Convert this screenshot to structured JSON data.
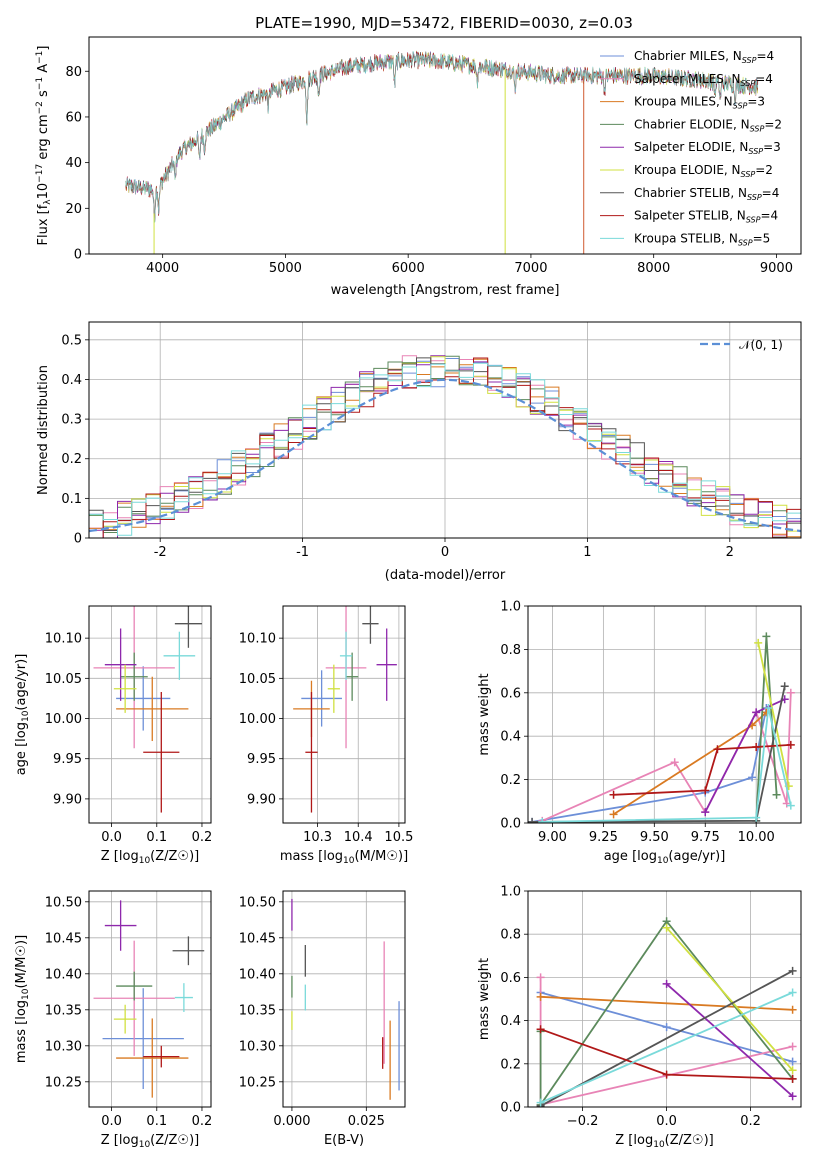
{
  "figure_title": "PLATE=1990, MJD=53472, FIBERID=0030, z=0.03",
  "chart_data": [
    {
      "id": "spectrum",
      "type": "line",
      "xlabel": "wavelength [Angstrom, rest frame]",
      "ylabel": "Flux [f_λ10^-17 erg cm^-2 s^-1 A^-1]",
      "xlim": [
        3400,
        9200
      ],
      "ylim": [
        0,
        95
      ],
      "xticks": [
        4000,
        5000,
        6000,
        7000,
        8000,
        9000
      ],
      "yticks": [
        0,
        20,
        40,
        60,
        80
      ],
      "grid": false,
      "legend_position": "right",
      "legend": [
        {
          "label": "Chabrier MILES, N",
          "sub": "SSP",
          "suffix": "=4",
          "color": "#6d8fd8"
        },
        {
          "label": "Salpeter MILES, N",
          "sub": "SSP",
          "suffix": "=4",
          "color": "#e884b6"
        },
        {
          "label": "Kroupa MILES, N",
          "sub": "SSP",
          "suffix": "=3",
          "color": "#d97a22"
        },
        {
          "label": "Chabrier ELODIE, N",
          "sub": "SSP",
          "suffix": "=2",
          "color": "#5c8a5c"
        },
        {
          "label": "Salpeter ELODIE, N",
          "sub": "SSP",
          "suffix": "=3",
          "color": "#8e28ac"
        },
        {
          "label": "Kroupa ELODIE, N",
          "sub": "SSP",
          "suffix": "=2",
          "color": "#d0e040"
        },
        {
          "label": "Chabrier STELIB, N",
          "sub": "SSP",
          "suffix": "=4",
          "color": "#555555"
        },
        {
          "label": "Salpeter STELIB, N",
          "sub": "SSP",
          "suffix": "=4",
          "color": "#b01818"
        },
        {
          "label": "Kroupa STELIB, N",
          "sub": "SSP",
          "suffix": "=5",
          "color": "#7adada"
        }
      ],
      "x_range": [
        3700,
        8850
      ],
      "continuum_anchors": [
        [
          3700,
          30
        ],
        [
          3950,
          28
        ],
        [
          4150,
          45
        ],
        [
          4400,
          55
        ],
        [
          4700,
          68
        ],
        [
          5000,
          73
        ],
        [
          5200,
          77
        ],
        [
          5500,
          82
        ],
        [
          5800,
          84
        ],
        [
          6100,
          85
        ],
        [
          6300,
          84
        ],
        [
          6600,
          82
        ],
        [
          6900,
          80
        ],
        [
          7200,
          78
        ],
        [
          7600,
          78
        ],
        [
          8000,
          78
        ],
        [
          8400,
          76
        ],
        [
          8850,
          73
        ]
      ],
      "absorption_lines": [
        [
          3933,
          12
        ],
        [
          3968,
          10
        ],
        [
          4102,
          8
        ],
        [
          4300,
          10
        ],
        [
          4340,
          6
        ],
        [
          4861,
          6
        ],
        [
          5175,
          18
        ],
        [
          5270,
          8
        ],
        [
          5890,
          10
        ],
        [
          6563,
          6
        ],
        [
          6870,
          8
        ],
        [
          7600,
          6
        ],
        [
          8498,
          5
        ],
        [
          8542,
          7
        ],
        [
          8662,
          6
        ]
      ],
      "glitches": [
        {
          "x": 3930,
          "to": 0,
          "color": "#d0e040"
        },
        {
          "x": 6790,
          "to": 0,
          "color": "#d0e040"
        },
        {
          "x": 7430,
          "to": 0,
          "color": "#d05a30"
        }
      ]
    },
    {
      "id": "residuals",
      "type": "step-histogram",
      "xlabel": "(data-model)/error",
      "ylabel": "Normed distribution",
      "xlim": [
        -2.5,
        2.5
      ],
      "ylim": [
        0,
        0.545
      ],
      "xticks": [
        -2,
        -1,
        0,
        1,
        2
      ],
      "yticks": [
        0.0,
        0.1,
        0.2,
        0.3,
        0.4,
        0.5
      ],
      "grid": true,
      "legend_position": "top-right",
      "normal_label": "𝒩(0, 1)",
      "normal_color": "#5b8fd6",
      "bin_edges_start": -2.5,
      "bin_width": 0.1,
      "series_colors": [
        "#6d8fd8",
        "#e884b6",
        "#d97a22",
        "#5c8a5c",
        "#8e28ac",
        "#d0e040",
        "#555555",
        "#b01818",
        "#7adada"
      ]
    },
    {
      "id": "age-vs-z",
      "type": "scatter",
      "xlabel": "Z [log10(Z/Z☉)]",
      "ylabel": "age  [log10(age/yr)]",
      "xlim": [
        -0.05,
        0.22
      ],
      "ylim": [
        9.87,
        10.14
      ],
      "xticks": [
        0.0,
        0.1,
        0.2
      ],
      "xtick_labels": [
        "0.0",
        "0.1",
        "0.2"
      ],
      "yticks": [
        9.9,
        9.95,
        10.0,
        10.05,
        10.1
      ],
      "ytick_labels": [
        "9.90",
        "9.95",
        "10.00",
        "10.05",
        "10.10"
      ],
      "grid": true,
      "points": [
        {
          "x": 0.07,
          "y": 10.025,
          "xerr": 0.06,
          "yerr": 0.04,
          "color": "#6d8fd8"
        },
        {
          "x": 0.05,
          "y": 10.063,
          "xerr": 0.09,
          "yerr": 0.1,
          "color": "#e884b6"
        },
        {
          "x": 0.09,
          "y": 10.012,
          "xerr": 0.08,
          "yerr": 0.04,
          "color": "#d97a22"
        },
        {
          "x": 0.05,
          "y": 10.052,
          "xerr": 0.03,
          "yerr": 0.03,
          "color": "#5c8a5c"
        },
        {
          "x": 0.02,
          "y": 10.067,
          "xerr": 0.035,
          "yerr": 0.045,
          "color": "#8e28ac"
        },
        {
          "x": 0.03,
          "y": 10.037,
          "xerr": 0.025,
          "yerr": 0.03,
          "color": "#d0e040"
        },
        {
          "x": 0.17,
          "y": 10.118,
          "xerr": 0.03,
          "yerr": 0.03,
          "color": "#555555"
        },
        {
          "x": 0.11,
          "y": 9.958,
          "xerr": 0.04,
          "yerr": 0.075,
          "color": "#b01818"
        },
        {
          "x": 0.15,
          "y": 10.078,
          "xerr": 0.035,
          "yerr": 0.03,
          "color": "#7adada"
        }
      ]
    },
    {
      "id": "age-vs-mass",
      "type": "scatter",
      "xlabel": "mass [log10(M/M☉)]",
      "ylabel": "",
      "xlim": [
        10.215,
        10.515
      ],
      "ylim": [
        9.87,
        10.14
      ],
      "xticks": [
        10.3,
        10.4,
        10.5
      ],
      "xtick_labels": [
        "10.3",
        "10.4",
        "10.5"
      ],
      "yticks": [
        9.9,
        9.95,
        10.0,
        10.05,
        10.1
      ],
      "ytick_labels": [
        "9.90",
        "9.95",
        "10.00",
        "10.05",
        "10.10"
      ],
      "grid": true,
      "points": [
        {
          "x": 10.31,
          "y": 10.025,
          "xerr": 0.05,
          "yerr": 0.035,
          "color": "#6d8fd8"
        },
        {
          "x": 10.37,
          "y": 10.063,
          "xerr": 0.05,
          "yerr": 0.1,
          "color": "#e884b6"
        },
        {
          "x": 10.285,
          "y": 10.012,
          "xerr": 0.045,
          "yerr": 0.035,
          "color": "#d97a22"
        },
        {
          "x": 10.385,
          "y": 10.052,
          "xerr": 0.015,
          "yerr": 0.03,
          "color": "#5c8a5c"
        },
        {
          "x": 10.47,
          "y": 10.067,
          "xerr": 0.025,
          "yerr": 0.045,
          "color": "#8e28ac"
        },
        {
          "x": 10.34,
          "y": 10.037,
          "xerr": 0.015,
          "yerr": 0.03,
          "color": "#d0e040"
        },
        {
          "x": 10.43,
          "y": 10.118,
          "xerr": 0.02,
          "yerr": 0.025,
          "color": "#555555"
        },
        {
          "x": 10.285,
          "y": 9.958,
          "xerr": 0.015,
          "yerr": 0.075,
          "color": "#b01818"
        },
        {
          "x": 10.37,
          "y": 10.078,
          "xerr": 0.015,
          "yerr": 0.03,
          "color": "#7adada"
        }
      ]
    },
    {
      "id": "weight-vs-age",
      "type": "line",
      "xlabel": "age  [log10(age/yr)]",
      "ylabel": "mass weight",
      "xlim": [
        8.88,
        10.22
      ],
      "ylim": [
        0,
        1.0
      ],
      "xticks": [
        9.0,
        9.25,
        9.5,
        9.75,
        10.0
      ],
      "xtick_labels": [
        "9.00",
        "9.25",
        "9.50",
        "9.75",
        "10.00"
      ],
      "yticks": [
        0.0,
        0.2,
        0.4,
        0.6,
        0.8,
        1.0
      ],
      "ytick_labels": [
        "0.0",
        "0.2",
        "0.4",
        "0.6",
        "0.8",
        "1.0"
      ],
      "grid": true,
      "series": [
        {
          "color": "#6d8fd8",
          "points": [
            [
              8.9,
              0.005
            ],
            [
              9.75,
              0.14
            ],
            [
              9.98,
              0.21
            ],
            [
              10.05,
              0.53
            ]
          ]
        },
        {
          "color": "#e884b6",
          "points": [
            [
              8.95,
              0.01
            ],
            [
              9.6,
              0.28
            ],
            [
              9.75,
              0.05
            ],
            [
              10.0,
              0.51
            ],
            [
              10.15,
              0.09
            ],
            [
              10.17,
              0.6
            ]
          ]
        },
        {
          "color": "#d97a22",
          "points": [
            [
              9.3,
              0.04
            ],
            [
              9.98,
              0.45
            ],
            [
              10.05,
              0.51
            ]
          ]
        },
        {
          "color": "#5c8a5c",
          "points": [
            [
              10.0,
              0.01
            ],
            [
              10.05,
              0.86
            ],
            [
              10.1,
              0.13
            ]
          ]
        },
        {
          "color": "#8e28ac",
          "points": [
            [
              9.75,
              0.05
            ],
            [
              10.0,
              0.51
            ],
            [
              10.14,
              0.57
            ]
          ]
        },
        {
          "color": "#d0e040",
          "points": [
            [
              10.01,
              0.83
            ],
            [
              10.16,
              0.17
            ]
          ]
        },
        {
          "color": "#555555",
          "points": [
            [
              8.9,
              0.005
            ],
            [
              10.0,
              0.01
            ],
            [
              10.14,
              0.63
            ]
          ]
        },
        {
          "color": "#b01818",
          "points": [
            [
              9.3,
              0.13
            ],
            [
              9.75,
              0.15
            ],
            [
              9.81,
              0.34
            ],
            [
              10.0,
              0.35
            ],
            [
              10.17,
              0.36
            ]
          ]
        },
        {
          "color": "#7adada",
          "points": [
            [
              8.95,
              0.005
            ],
            [
              10.0,
              0.025
            ],
            [
              10.06,
              0.53
            ],
            [
              10.17,
              0.08
            ]
          ]
        }
      ]
    },
    {
      "id": "mass-vs-z",
      "type": "scatter",
      "xlabel": "Z [log10(Z/Z☉)]",
      "ylabel": "mass [log10(M/M☉)]",
      "xlim": [
        -0.05,
        0.22
      ],
      "ylim": [
        10.215,
        10.515
      ],
      "xticks": [
        0.0,
        0.1,
        0.2
      ],
      "xtick_labels": [
        "0.0",
        "0.1",
        "0.2"
      ],
      "yticks": [
        10.25,
        10.3,
        10.35,
        10.4,
        10.45,
        10.5
      ],
      "ytick_labels": [
        "10.25",
        "10.30",
        "10.35",
        "10.40",
        "10.45",
        "10.50"
      ],
      "grid": true,
      "points": [
        {
          "x": 0.07,
          "y": 10.31,
          "xerr": 0.09,
          "yerr": 0.07,
          "color": "#6d8fd8"
        },
        {
          "x": 0.05,
          "y": 10.366,
          "xerr": 0.09,
          "yerr": 0.08,
          "color": "#e884b6"
        },
        {
          "x": 0.09,
          "y": 10.283,
          "xerr": 0.08,
          "yerr": 0.055,
          "color": "#d97a22"
        },
        {
          "x": 0.05,
          "y": 10.383,
          "xerr": 0.04,
          "yerr": 0.02,
          "color": "#5c8a5c"
        },
        {
          "x": 0.02,
          "y": 10.467,
          "xerr": 0.035,
          "yerr": 0.035,
          "color": "#8e28ac"
        },
        {
          "x": 0.03,
          "y": 10.337,
          "xerr": 0.025,
          "yerr": 0.02,
          "color": "#d0e040"
        },
        {
          "x": 0.17,
          "y": 10.432,
          "xerr": 0.035,
          "yerr": 0.02,
          "color": "#555555"
        },
        {
          "x": 0.11,
          "y": 10.285,
          "xerr": 0.04,
          "yerr": 0.015,
          "color": "#b01818"
        },
        {
          "x": 0.16,
          "y": 10.367,
          "xerr": 0.02,
          "yerr": 0.02,
          "color": "#7adada"
        }
      ]
    },
    {
      "id": "mass-vs-ebv",
      "type": "scatter",
      "xlabel": "E(B-V)",
      "ylabel": "",
      "xlim": [
        -0.003,
        0.038
      ],
      "ylim": [
        10.215,
        10.515
      ],
      "xticks": [
        0.0,
        0.025
      ],
      "xtick_labels": [
        "0.000",
        "0.025"
      ],
      "yticks": [
        10.25,
        10.3,
        10.35,
        10.4,
        10.45,
        10.5
      ],
      "ytick_labels": [
        "10.25",
        "10.30",
        "10.35",
        "10.40",
        "10.45",
        "10.50"
      ],
      "grid": true,
      "points": [
        {
          "x": 0.036,
          "y": 10.3,
          "xerr": 0,
          "yerr": 0.062,
          "color": "#6d8fd8"
        },
        {
          "x": 0.031,
          "y": 10.36,
          "xerr": 0,
          "yerr": 0.085,
          "color": "#e884b6"
        },
        {
          "x": 0.033,
          "y": 10.28,
          "xerr": 0,
          "yerr": 0.055,
          "color": "#d97a22"
        },
        {
          "x": 0.0,
          "y": 10.382,
          "xerr": 0,
          "yerr": 0.015,
          "color": "#5c8a5c"
        },
        {
          "x": 0.0,
          "y": 10.482,
          "xerr": 0,
          "yerr": 0.022,
          "color": "#8e28ac"
        },
        {
          "x": 0.0,
          "y": 10.335,
          "xerr": 0,
          "yerr": 0.013,
          "color": "#d0e040"
        },
        {
          "x": 0.0045,
          "y": 10.418,
          "xerr": 0,
          "yerr": 0.022,
          "color": "#555555"
        },
        {
          "x": 0.0305,
          "y": 10.29,
          "xerr": 0,
          "yerr": 0.022,
          "color": "#b01818"
        },
        {
          "x": 0.0045,
          "y": 10.367,
          "xerr": 0,
          "yerr": 0.018,
          "color": "#7adada"
        }
      ]
    },
    {
      "id": "weight-vs-z",
      "type": "line",
      "xlabel": "Z [log10(Z/Z☉)]",
      "ylabel": "mass weight",
      "xlim": [
        -0.33,
        0.32
      ],
      "ylim": [
        0,
        1.0
      ],
      "xticks": [
        -0.2,
        0.0,
        0.2
      ],
      "xtick_labels": [
        "−0.2",
        "0.0",
        "0.2"
      ],
      "yticks": [
        0.0,
        0.2,
        0.4,
        0.6,
        0.8,
        1.0
      ],
      "ytick_labels": [
        "0.0",
        "0.2",
        "0.4",
        "0.6",
        "0.8",
        "1.0"
      ],
      "grid": true,
      "series": [
        {
          "color": "#6d8fd8",
          "points": [
            [
              -0.3,
              0.53
            ],
            [
              0.0,
              0.37
            ],
            [
              0.3,
              0.21
            ]
          ]
        },
        {
          "color": "#e884b6",
          "points": [
            [
              -0.3,
              0.6
            ],
            [
              -0.3,
              0.01
            ],
            [
              0.3,
              0.28
            ]
          ]
        },
        {
          "color": "#d97a22",
          "points": [
            [
              -0.3,
              0.51
            ],
            [
              0.3,
              0.45
            ]
          ]
        },
        {
          "color": "#5c8a5c",
          "points": [
            [
              -0.3,
              0.35
            ],
            [
              -0.3,
              0.01
            ],
            [
              0.0,
              0.86
            ],
            [
              0.3,
              0.13
            ]
          ]
        },
        {
          "color": "#8e28ac",
          "points": [
            [
              0.0,
              0.57
            ],
            [
              0.3,
              0.05
            ]
          ]
        },
        {
          "color": "#d0e040",
          "points": [
            [
              0.0,
              0.83
            ],
            [
              0.3,
              0.17
            ]
          ]
        },
        {
          "color": "#555555",
          "points": [
            [
              -0.3,
              0.005
            ],
            [
              0.3,
              0.63
            ]
          ]
        },
        {
          "color": "#b01818",
          "points": [
            [
              -0.3,
              0.36
            ],
            [
              0.0,
              0.15
            ],
            [
              0.3,
              0.13
            ]
          ]
        },
        {
          "color": "#7adada",
          "points": [
            [
              -0.3,
              0.02
            ],
            [
              0.3,
              0.53
            ]
          ]
        }
      ]
    }
  ]
}
